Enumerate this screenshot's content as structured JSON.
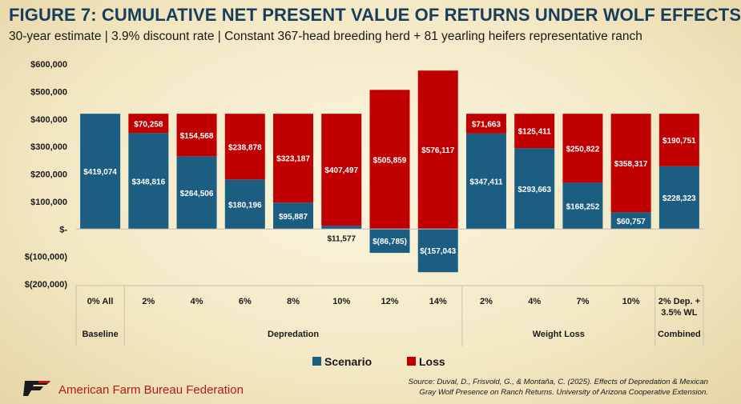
{
  "title": "FIGURE 7: CUMULATIVE NET PRESENT VALUE OF RETURNS UNDER WOLF EFFECTS",
  "subtitle": "30-year estimate | 3.9% discount rate | Constant 367-head breeding herd + 81 yearling heifers representative ranch",
  "org_name": "American Farm Bureau Federation",
  "source_line1": "Source: Duval, D., Frisvold, G., & Montaña, C. (2025). Effects of Depredation & Mexican",
  "source_line2": "Gray Wolf Presence on Ranch Returns. University of Arizona Cooperative Extension.",
  "colors": {
    "scenario": "#1c5d82",
    "loss": "#c00000",
    "title": "#1b3d5c",
    "brand": "#b31a1a"
  },
  "chart_data": {
    "type": "bar",
    "stacked": true,
    "categories": [
      "0% All",
      "2%",
      "4%",
      "6%",
      "8%",
      "10%",
      "12%",
      "14%",
      "2%",
      "4%",
      "7%",
      "10%",
      "2% Dep. + 3.5% WL"
    ],
    "groups": [
      {
        "label": "Baseline",
        "span": 1
      },
      {
        "label": "Depredation",
        "span": 7
      },
      {
        "label": "Weight Loss",
        "span": 4
      },
      {
        "label": "Combined",
        "span": 1
      }
    ],
    "series": [
      {
        "name": "Scenario",
        "values": [
          419074,
          348816,
          264506,
          180196,
          95887,
          11577,
          -86785,
          -157043,
          347411,
          293663,
          168252,
          60757,
          228323
        ]
      },
      {
        "name": "Loss",
        "values": [
          0,
          70258,
          154568,
          238878,
          323187,
          407497,
          505859,
          576117,
          71663,
          125411,
          250822,
          358317,
          190751
        ]
      }
    ],
    "scenario_labels": [
      "$419,074",
      "$348,816",
      "$264,506",
      "$180,196",
      "$95,887",
      "$11,577",
      "$(86,785)",
      "$(157,043",
      "$347,411",
      "$293,663",
      "$168,252",
      "$60,757",
      "$228,323"
    ],
    "loss_labels": [
      "",
      "$70,258",
      "$154,568",
      "$238,878",
      "$323,187",
      "$407,497",
      "$505,859",
      "$576,117",
      "$71,663",
      "$125,411",
      "$250,822",
      "$358,317",
      "$190,751"
    ],
    "ylim": [
      -200000,
      600000
    ],
    "yticks": [
      600000,
      500000,
      400000,
      300000,
      200000,
      100000,
      0,
      -100000,
      -200000
    ],
    "ytick_labels": [
      "$600,000",
      "$500,000",
      "$400,000",
      "$300,000",
      "$200,000",
      "$100,000",
      "$-",
      "$(100,000)",
      "$(200,000)"
    ],
    "grid": false,
    "legend": "bottom"
  }
}
